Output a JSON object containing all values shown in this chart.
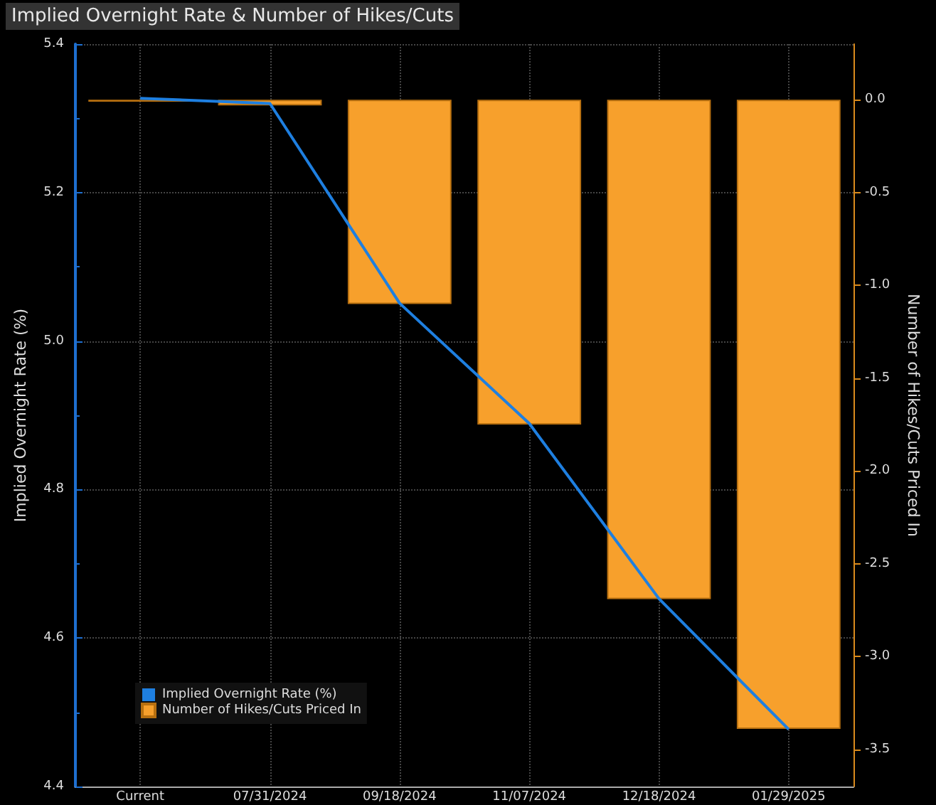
{
  "chart_data": {
    "type": "bar",
    "title": "Implied Overnight Rate & Number of Hikes/Cuts",
    "categories": [
      "Current",
      "07/31/2024",
      "09/18/2024",
      "11/07/2024",
      "12/18/2024",
      "01/29/2025"
    ],
    "series": [
      {
        "name": "Implied Overnight Rate (%)",
        "type": "line",
        "color": "#1e7fe0",
        "values": [
          5.327,
          5.32,
          5.051,
          4.889,
          4.653,
          4.477
        ]
      },
      {
        "name": "Number of Hikes/Cuts Priced In",
        "axis": "y2",
        "color": "#f7a02c",
        "values": [
          -0.01,
          -0.03,
          -1.1,
          -1.75,
          -2.69,
          -3.39
        ]
      }
    ],
    "ylabel": "Implied Overnight Rate (%)",
    "y2label": "Number of Hikes/Cuts Priced In",
    "ylim": [
      4.4,
      5.4
    ],
    "yticks": [
      4.4,
      4.6,
      4.8,
      {
        "value": 5,
        "label": "5.0"
      },
      5.2,
      5.4
    ],
    "y2lim": [
      -3.7,
      0.3
    ],
    "y2ticks": [
      -3.5,
      {
        "value": -3,
        "label": "-3.0"
      },
      -2.5,
      {
        "value": -2,
        "label": "-2.0"
      },
      -1.5,
      {
        "value": -1,
        "label": "-1.0"
      },
      -0.5,
      {
        "value": 0,
        "label": "0.0"
      }
    ],
    "grid": true,
    "legend": "bottom left",
    "marker": "none",
    "line_style": "solid"
  }
}
